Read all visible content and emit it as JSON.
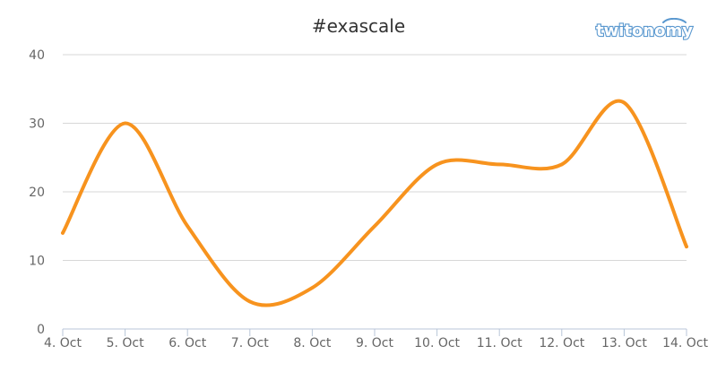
{
  "brand": {
    "name": "twitonomy"
  },
  "colors": {
    "series": "#f7931e",
    "grid": "#d7d7d7",
    "axis": "#b8c6d8",
    "text": "#666666",
    "title": "#333333",
    "brand": "#5a98cf"
  },
  "chart_data": {
    "type": "line",
    "title": "#exascale",
    "xlabel": "",
    "ylabel": "",
    "categories": [
      "4. Oct",
      "5. Oct",
      "6. Oct",
      "7. Oct",
      "8. Oct",
      "9. Oct",
      "10. Oct",
      "11. Oct",
      "12. Oct",
      "13. Oct",
      "14. Oct"
    ],
    "yticks": [
      0,
      10,
      20,
      30,
      40
    ],
    "ylim": [
      0,
      40
    ],
    "grid": true,
    "legend": "none",
    "series": [
      {
        "values": [
          14,
          30,
          15,
          4,
          6,
          15,
          24,
          24,
          24,
          33,
          12
        ]
      }
    ]
  }
}
